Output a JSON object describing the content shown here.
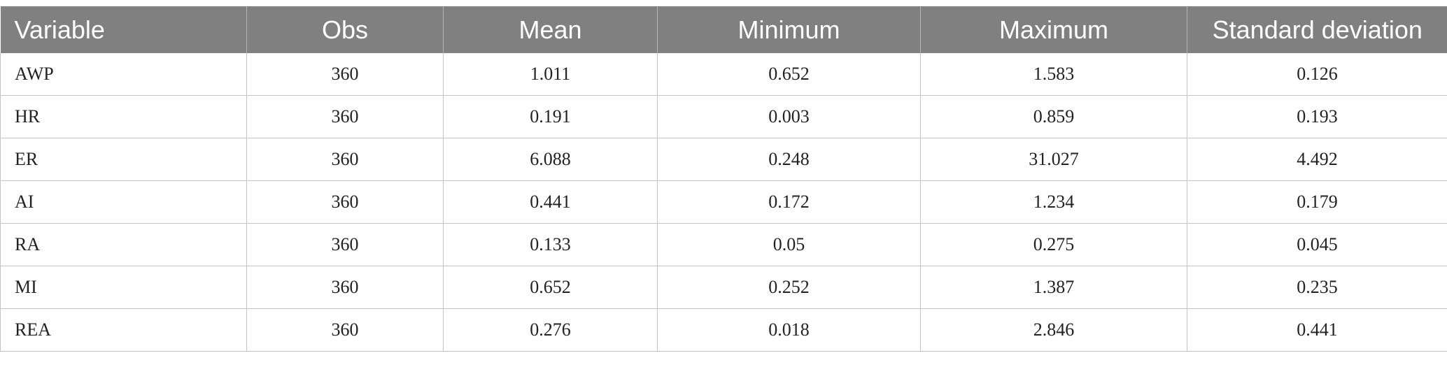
{
  "table": {
    "columns": [
      "Variable",
      "Obs",
      "Mean",
      "Minimum",
      "Maximum",
      "Standard deviation"
    ],
    "rows": [
      [
        "AWP",
        "360",
        "1.011",
        "0.652",
        "1.583",
        "0.126"
      ],
      [
        "HR",
        "360",
        "0.191",
        "0.003",
        "0.859",
        "0.193"
      ],
      [
        "ER",
        "360",
        "6.088",
        "0.248",
        "31.027",
        "4.492"
      ],
      [
        "AI",
        "360",
        "0.441",
        "0.172",
        "1.234",
        "0.179"
      ],
      [
        "RA",
        "360",
        "0.133",
        "0.05",
        "0.275",
        "0.045"
      ],
      [
        "MI",
        "360",
        "0.652",
        "0.252",
        "1.387",
        "0.235"
      ],
      [
        "REA",
        "360",
        "0.276",
        "0.018",
        "2.846",
        "0.441"
      ]
    ]
  },
  "colors": {
    "header_bg": "#808080",
    "header_text": "#ffffff",
    "border": "#c4c4c4",
    "cell_text": "#222222"
  }
}
